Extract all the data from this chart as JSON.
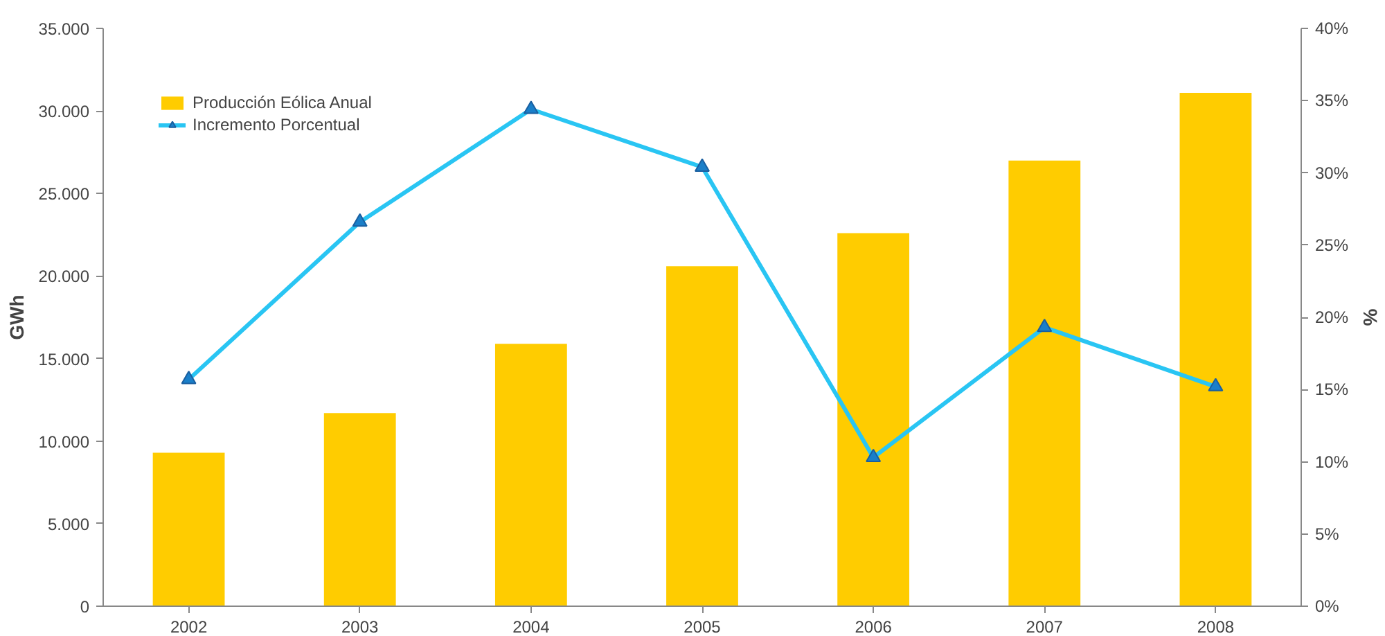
{
  "chart_data": {
    "type": "bar",
    "categories": [
      "2002",
      "2003",
      "2004",
      "2005",
      "2006",
      "2007",
      "2008"
    ],
    "ylabel": "GWh",
    "y2label": "%",
    "series": [
      {
        "name": "Producción Eólica Anual",
        "color": "#ffcc00",
        "values": [
          9300,
          11700,
          15900,
          20600,
          22600,
          27000,
          31100
        ]
      },
      {
        "name": "Incremento Porcentual",
        "type": "line",
        "axis": "y2",
        "color": "#29c5f3",
        "marker": "triangle",
        "line_style": "solid",
        "values": [
          15.7,
          26.6,
          34.4,
          30.4,
          10.3,
          19.3,
          15.2
        ]
      }
    ],
    "ylim": [
      0,
      35000
    ],
    "yticks": [
      {
        "value": 0,
        "label": "0"
      },
      {
        "value": 5000,
        "label": "5.000"
      },
      {
        "value": 10000,
        "label": "10.000"
      },
      {
        "value": 15000,
        "label": "15.000"
      },
      {
        "value": 20000,
        "label": "20.000"
      },
      {
        "value": 25000,
        "label": "25.000"
      },
      {
        "value": 30000,
        "label": "30.000"
      },
      {
        "value": 35000,
        "label": "35.000"
      }
    ],
    "y2lim": [
      0,
      40
    ],
    "y2ticks": [
      {
        "value": 0,
        "label": "0%"
      },
      {
        "value": 5,
        "label": "5%"
      },
      {
        "value": 10,
        "label": "10%"
      },
      {
        "value": 15,
        "label": "15%"
      },
      {
        "value": 20,
        "label": "20%"
      },
      {
        "value": 25,
        "label": "25%"
      },
      {
        "value": 30,
        "label": "30%"
      },
      {
        "value": 35,
        "label": "35%"
      },
      {
        "value": 40,
        "label": "40%"
      }
    ],
    "grid": false,
    "legend": "top left"
  }
}
